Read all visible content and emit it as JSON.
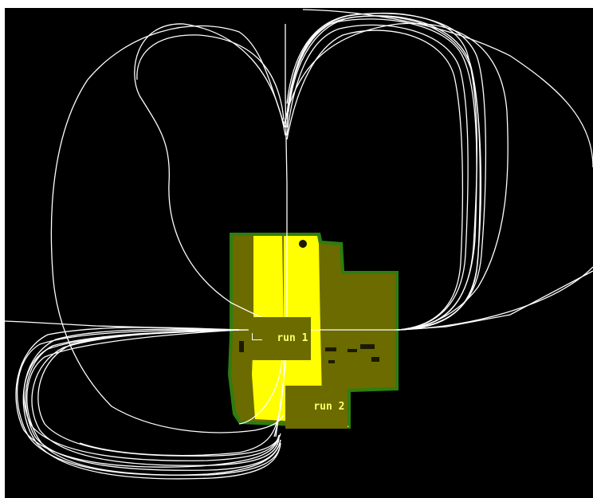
{
  "map": {
    "background_color": "#000000",
    "occupied_color": "#6b6b00",
    "free_color": "#ffff00",
    "border_color": "#2e7d10",
    "path_color": "#ffffff"
  },
  "runs": [
    {
      "label": "run 1"
    },
    {
      "label": "run 2"
    }
  ]
}
